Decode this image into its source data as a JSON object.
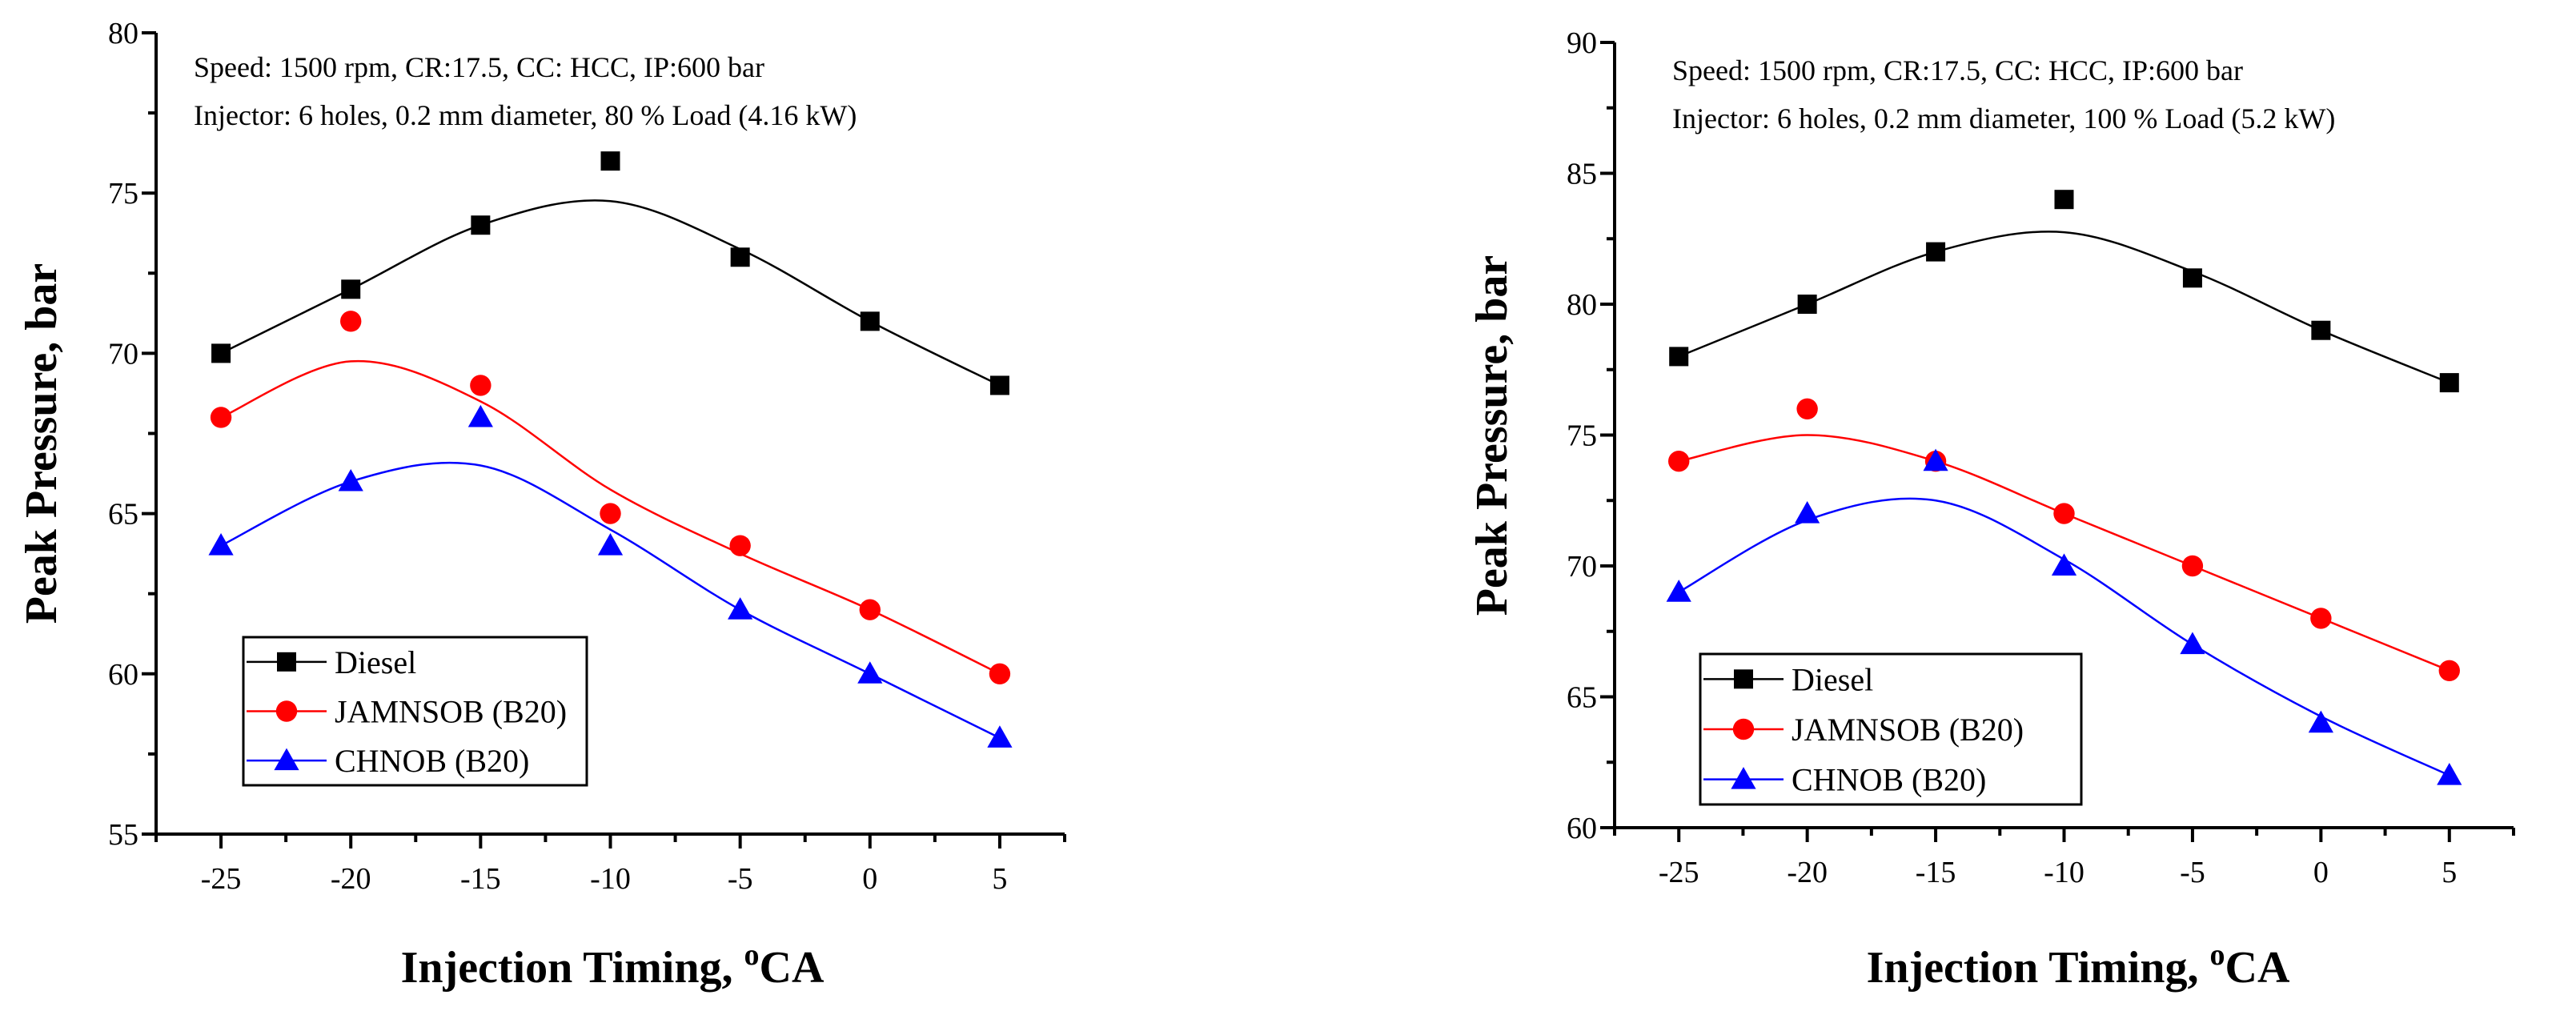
{
  "chart_data": [
    {
      "type": "line",
      "title": "",
      "annotations": [
        "Speed: 1500 rpm, CR:17.5, CC: HCC, IP:600 bar",
        "Injector: 6 holes, 0.2 mm diameter, 80 % Load (4.16 kW)"
      ],
      "xlabel": "Injection Timing, ",
      "xlabel_sup": "o",
      "xlabel_suffix": "CA",
      "ylabel": "Peak Pressure, bar",
      "x": [
        -25,
        -20,
        -15,
        -10,
        -5,
        0,
        5
      ],
      "xlim": [
        -27.5,
        7.5
      ],
      "ylim": [
        55,
        80
      ],
      "xticks": [
        -25,
        -20,
        -15,
        -10,
        -5,
        0,
        5
      ],
      "yticks": [
        55,
        60,
        65,
        70,
        75,
        80
      ],
      "grid": false,
      "legend_position": "bottom-left",
      "series": [
        {
          "name": "Diesel",
          "color": "#000000",
          "marker": "square",
          "values": [
            70,
            72,
            74,
            76,
            73,
            71,
            69
          ]
        },
        {
          "name": "JAMNSOB (B20)",
          "color": "#ff0000",
          "marker": "circle",
          "values": [
            68,
            71,
            69,
            65,
            64,
            62,
            60
          ]
        },
        {
          "name": "CHNOB (B20)",
          "color": "#0000ff",
          "marker": "triangle",
          "values": [
            64,
            66,
            68,
            64,
            62,
            60,
            58
          ]
        }
      ]
    },
    {
      "type": "line",
      "title": "",
      "annotations": [
        "Speed: 1500 rpm, CR:17.5, CC: HCC, IP:600 bar",
        "Injector: 6 holes, 0.2 mm diameter, 100 % Load (5.2 kW)"
      ],
      "xlabel": "Injection Timing, ",
      "xlabel_sup": "o",
      "xlabel_suffix": "CA",
      "ylabel": "Peak Pressure, bar",
      "x": [
        -25,
        -20,
        -15,
        -10,
        -5,
        0,
        5
      ],
      "xlim": [
        -27.5,
        7.5
      ],
      "ylim": [
        60,
        90
      ],
      "xticks": [
        -25,
        -20,
        -15,
        -10,
        -5,
        0,
        5
      ],
      "yticks": [
        60,
        65,
        70,
        75,
        80,
        85,
        90
      ],
      "grid": false,
      "legend_position": "bottom-left",
      "series": [
        {
          "name": "Diesel",
          "color": "#000000",
          "marker": "square",
          "values": [
            78,
            80,
            82,
            84,
            81,
            79,
            77
          ]
        },
        {
          "name": "JAMNSOB (B20)",
          "color": "#ff0000",
          "marker": "circle",
          "values": [
            74,
            76,
            74,
            72,
            70,
            68,
            66
          ]
        },
        {
          "name": "CHNOB (B20)",
          "color": "#0000ff",
          "marker": "triangle",
          "values": [
            69,
            72,
            74,
            70,
            67,
            64,
            62
          ]
        }
      ]
    }
  ]
}
